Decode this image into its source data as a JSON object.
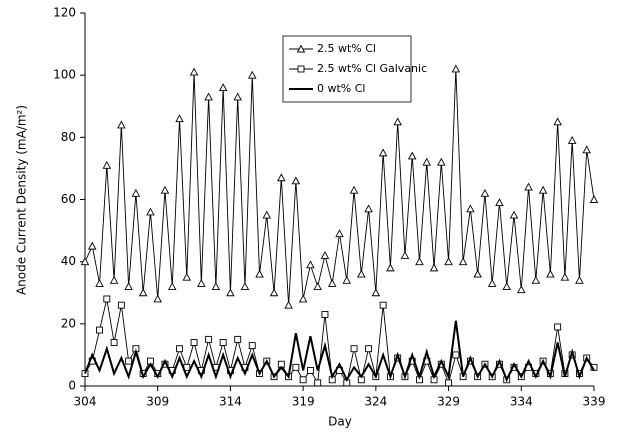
{
  "chart_data": {
    "type": "line",
    "xlabel": "Day",
    "ylabel": "Anode Current Density (mA/m²)",
    "x": [
      304,
      304.5,
      305,
      305.5,
      306,
      306.5,
      307,
      307.5,
      308,
      308.5,
      309,
      309.5,
      310,
      310.5,
      311,
      311.5,
      312,
      312.5,
      313,
      313.5,
      314,
      314.5,
      315,
      315.5,
      316,
      316.5,
      317,
      317.5,
      318,
      318.5,
      319,
      319.5,
      320,
      320.5,
      321,
      321.5,
      322,
      322.5,
      323,
      323.5,
      324,
      324.5,
      325,
      325.5,
      326,
      326.5,
      327,
      327.5,
      328,
      328.5,
      329,
      329.5,
      330,
      330.5,
      331,
      331.5,
      332,
      332.5,
      333,
      333.5,
      334,
      334.5,
      335,
      335.5,
      336,
      336.5,
      337,
      337.5,
      338,
      338.5,
      339
    ],
    "series": [
      {
        "name": "2.5 wt% Cl",
        "color": "#000000",
        "marker": "triangle",
        "values": [
          40,
          45,
          33,
          71,
          34,
          84,
          32,
          62,
          30,
          56,
          28,
          63,
          32,
          86,
          35,
          101,
          33,
          93,
          32,
          96,
          30,
          93,
          32,
          100,
          36,
          55,
          30,
          67,
          26,
          66,
          28,
          39,
          32,
          42,
          33,
          49,
          34,
          63,
          36,
          57,
          30,
          75,
          38,
          85,
          42,
          74,
          40,
          72,
          38,
          72,
          40,
          102,
          40,
          57,
          36,
          62,
          33,
          59,
          32,
          55,
          31,
          64,
          34,
          63,
          36,
          85,
          35,
          79,
          34,
          76,
          60
        ]
      },
      {
        "name": "2.5 wt% Cl Galvanic",
        "color": "#000000",
        "marker": "square",
        "values": [
          4,
          8,
          18,
          28,
          14,
          26,
          8,
          12,
          4,
          8,
          4,
          7,
          5,
          12,
          6,
          14,
          5,
          15,
          6,
          14,
          5,
          15,
          6,
          13,
          4,
          8,
          3,
          7,
          3,
          6,
          2,
          5,
          1,
          23,
          2,
          5,
          1,
          12,
          2,
          12,
          3,
          26,
          3,
          9,
          3,
          8,
          2,
          8,
          2,
          7,
          1,
          10,
          3,
          8,
          3,
          7,
          3,
          7,
          2,
          6,
          3,
          6,
          4,
          8,
          4,
          19,
          4,
          10,
          4,
          9,
          6
        ]
      },
      {
        "name": "0 wt% Cl",
        "color": "#000000",
        "marker": "none",
        "values": [
          4,
          10,
          5,
          12,
          4,
          9,
          3,
          11,
          3,
          7,
          3,
          8,
          3,
          9,
          3,
          8,
          3,
          10,
          3,
          10,
          3,
          9,
          4,
          10,
          4,
          8,
          3,
          6,
          3,
          17,
          5,
          16,
          5,
          13,
          3,
          7,
          2,
          6,
          3,
          7,
          3,
          10,
          3,
          10,
          3,
          10,
          3,
          11,
          3,
          8,
          3,
          21,
          3,
          9,
          3,
          7,
          3,
          8,
          2,
          7,
          3,
          8,
          3,
          8,
          3,
          14,
          3,
          11,
          3,
          9,
          5
        ]
      }
    ],
    "xlim": [
      304,
      339
    ],
    "xticks": [
      304,
      309,
      314,
      319,
      324,
      329,
      334,
      339
    ],
    "ylim": [
      0,
      120
    ],
    "yticks": [
      0,
      20,
      40,
      60,
      80,
      100,
      120
    ],
    "legend": "top-center"
  }
}
